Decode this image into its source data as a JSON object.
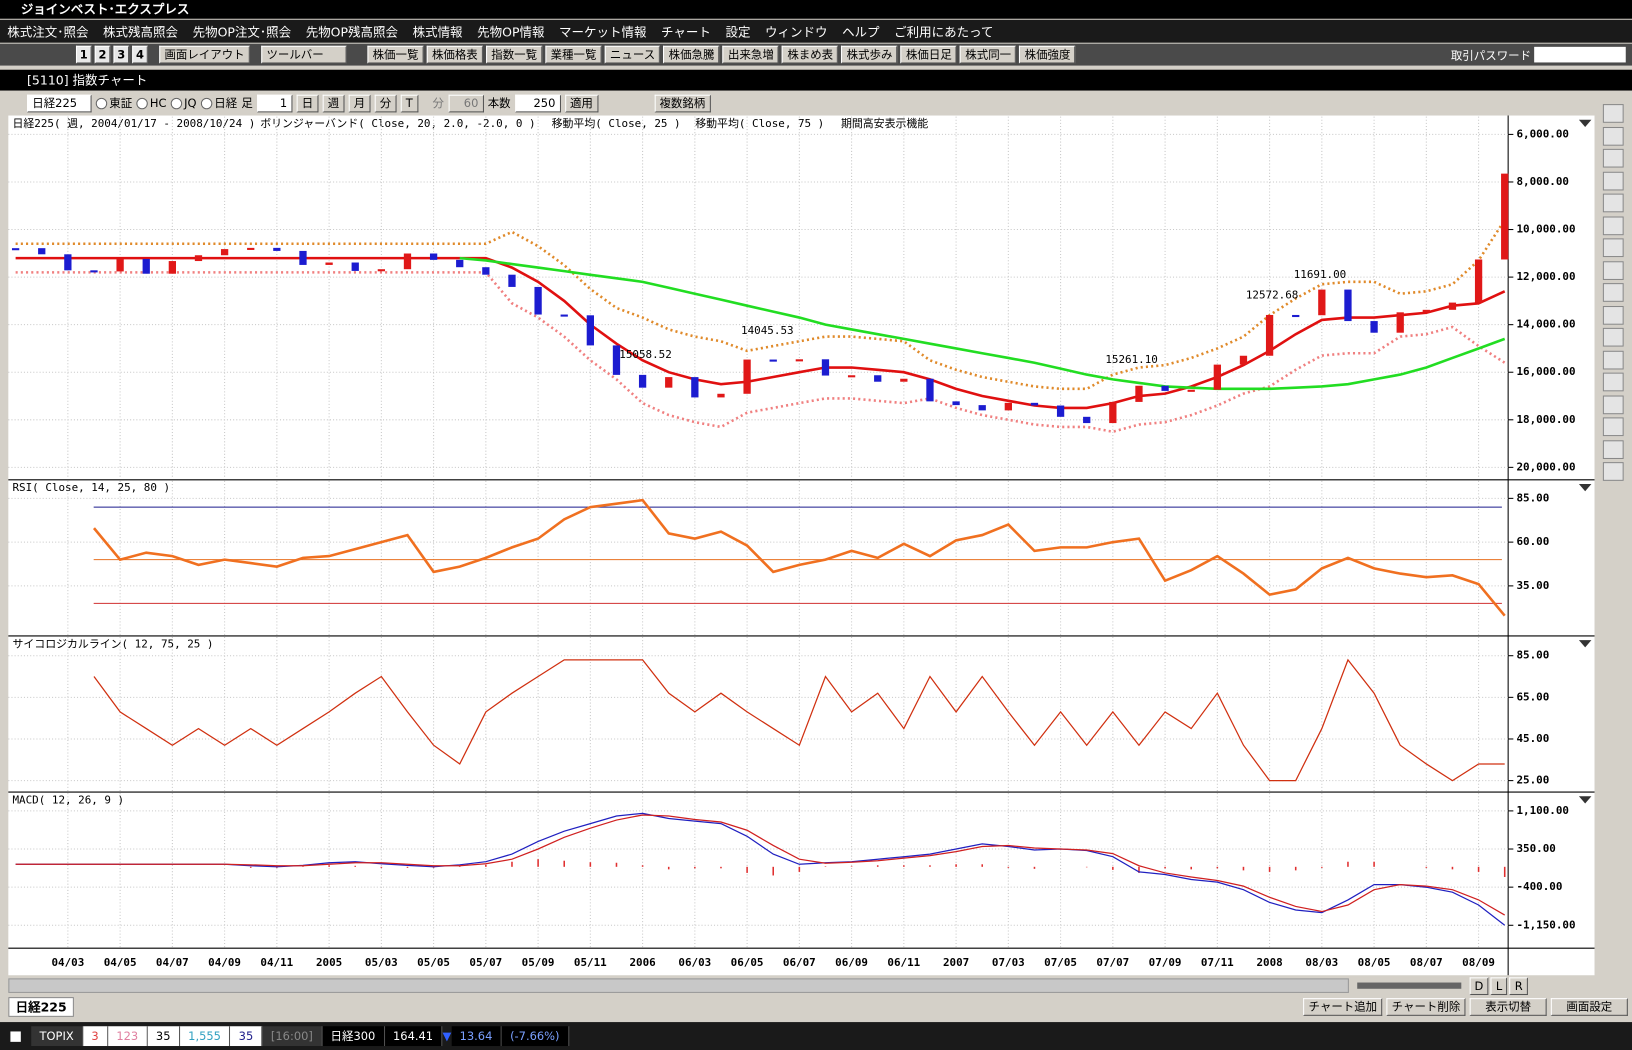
{
  "window_title": "ジョインベスト･エクスプレス",
  "menu": [
    "株式注文･照会",
    "株式残高照会",
    "先物OP注文･照会",
    "先物OP残高照会",
    "株式情報",
    "先物OP情報",
    "マーケット情報",
    "チャート",
    "設定",
    "ウィンドウ",
    "ヘルプ",
    "ご利用にあたって"
  ],
  "toolbar": {
    "pages": [
      "1",
      "2",
      "3",
      "4"
    ],
    "dropdowns": [
      "画面レイアウト",
      "ツールバー"
    ],
    "buttons": [
      "株価一覧",
      "株価格表",
      "指数一覧",
      "業種一覧",
      "ニュース",
      "株価急騰",
      "出来急増",
      "株まめ表",
      "株式歩み",
      "株価日足",
      "株式同一",
      "株価強度"
    ],
    "password_label": "取引パスワード"
  },
  "chart_window": {
    "title": "[5110] 指数チャート",
    "controls": {
      "symbol": "日経225",
      "markets": [
        "東証",
        "HC",
        "JQ",
        "日経"
      ],
      "period_label": "足",
      "period": "1",
      "units": [
        "日",
        "週",
        "月",
        "分",
        "T"
      ],
      "minute_label": "分",
      "minutes": "60",
      "count_label": "本数",
      "count": "250",
      "apply": "適用",
      "multi": "複数銘柄"
    },
    "header": [
      "日経225( 週, 2004/01/17 - 2008/10/24 )",
      "ボリンジャーバンド( Close, 20, 2.0, -2.0, 0 )",
      "移動平均( Close, 25 )",
      "移動平均( Close, 75 )",
      "期間高安表示機能"
    ],
    "scroll_buttons": [
      "D",
      "L",
      "R"
    ],
    "tab": "日経225",
    "buttons": [
      "チャート追加",
      "チャート削除",
      "表示切替",
      "画面設定"
    ]
  },
  "status_bar": {
    "items": [
      "TOPIX",
      "3",
      "123",
      "35",
      "1,555",
      "35",
      "[16:00]",
      "日経300",
      "164.41",
      "13.64",
      "(-7.66%)"
    ]
  },
  "chart_data": [
    {
      "type": "candlestick",
      "categories": [
        null,
        null,
        "04/03",
        null,
        "04/05",
        null,
        "04/07",
        null,
        "04/09",
        null,
        "04/11",
        null,
        "2005",
        null,
        "05/03",
        null,
        "05/05",
        null,
        "05/07",
        null,
        "05/09",
        null,
        "05/11",
        null,
        "2006",
        null,
        "06/03",
        null,
        "06/05",
        null,
        "06/07",
        null,
        "06/09",
        null,
        "06/11",
        null,
        "2007",
        null,
        "07/03",
        null,
        "07/05",
        null,
        "07/07",
        null,
        "07/09",
        null,
        "07/11",
        null,
        "2008",
        null,
        "08/03",
        null,
        "08/05",
        null,
        "08/07",
        null,
        "08/09",
        null
      ],
      "values": [
        10783,
        11041,
        11715,
        11761,
        11236,
        11858,
        11325,
        11081,
        10823,
        10771,
        10899,
        11488,
        11387,
        11740,
        11668,
        11008,
        11276,
        11584,
        11899,
        12413,
        13574,
        13606,
        14872,
        16111,
        16649,
        16205,
        17059,
        16906,
        15467,
        15505,
        15456,
        16140,
        16127,
        16399,
        16274,
        17225,
        17383,
        17604,
        17287,
        17400,
        17875,
        18138,
        17248,
        16569,
        16785,
        16737,
        15680,
        15307,
        13592,
        13603,
        12525,
        13849,
        14338,
        13481,
        13376,
        13072,
        11259,
        7649
      ],
      "up_color": "#1c1cd0",
      "down_color": "#e01818",
      "series": [
        {
          "color": "#f08080",
          "dash": true,
          "values": [
            11800,
            11800,
            11800,
            11800,
            11800,
            11800,
            11800,
            11800,
            11800,
            11800,
            11800,
            11800,
            11800,
            11800,
            11800,
            11800,
            11800,
            11800,
            11800,
            13100,
            13700,
            14500,
            15500,
            16300,
            17300,
            17800,
            18100,
            18300,
            17700,
            17500,
            17300,
            17100,
            17100,
            17200,
            17300,
            17100,
            17500,
            17800,
            18000,
            18200,
            18300,
            18300,
            18500,
            18200,
            18100,
            17800,
            17400,
            16900,
            16600,
            15900,
            15300,
            15200,
            15200,
            14500,
            14400,
            14100,
            14900,
            15600
          ]
        },
        {
          "color": "#e08a2a",
          "dash": true,
          "values": [
            10600,
            10600,
            10600,
            10600,
            10600,
            10600,
            10600,
            10600,
            10600,
            10600,
            10600,
            10600,
            10600,
            10600,
            10600,
            10600,
            10600,
            10600,
            10600,
            10100,
            10700,
            11500,
            12500,
            13300,
            13700,
            14200,
            14500,
            14700,
            15100,
            14900,
            14700,
            14500,
            14500,
            14600,
            14700,
            15500,
            15900,
            16200,
            16400,
            16600,
            16700,
            16700,
            16100,
            15800,
            15700,
            15400,
            15000,
            14500,
            13600,
            12900,
            12300,
            12200,
            12200,
            12700,
            12600,
            12300,
            11300,
            9600
          ]
        },
        {
          "color": "#e01010",
          "dash": false,
          "values": [
            11200,
            11200,
            11200,
            11200,
            11200,
            11200,
            11200,
            11200,
            11200,
            11200,
            11200,
            11200,
            11200,
            11200,
            11200,
            11200,
            11200,
            11200,
            11200,
            11600,
            12200,
            13000,
            14000,
            14800,
            15500,
            16000,
            16300,
            16500,
            16400,
            16200,
            16000,
            15800,
            15800,
            15900,
            16000,
            16300,
            16700,
            17000,
            17200,
            17400,
            17500,
            17500,
            17300,
            17000,
            16900,
            16600,
            16200,
            15700,
            15100,
            14400,
            13800,
            13700,
            13700,
            13600,
            13500,
            13200,
            13100,
            12600
          ]
        },
        {
          "color": "#22dd22",
          "dash": false,
          "values": [
            null,
            null,
            null,
            null,
            null,
            null,
            null,
            null,
            null,
            null,
            null,
            null,
            null,
            null,
            null,
            null,
            null,
            11200,
            11300,
            11450,
            11600,
            11750,
            11900,
            12050,
            12200,
            12450,
            12700,
            12950,
            13200,
            13450,
            13700,
            14000,
            14200,
            14400,
            14600,
            14800,
            15000,
            15200,
            15400,
            15600,
            15850,
            16100,
            16300,
            16450,
            16600,
            16650,
            16700,
            16700,
            16700,
            16650,
            16600,
            16500,
            16300,
            16100,
            15800,
            15400,
            15000,
            14600
          ]
        }
      ],
      "annotations": [
        "11691.00",
        "12572.68",
        "14045.53",
        "15261.10",
        "15058.52"
      ],
      "ylim": [
        20480,
        5250
      ],
      "yticks": [
        {
          "value": 6000,
          "label": "6,000.00"
        },
        {
          "value": 8000,
          "label": "8,000.00"
        },
        {
          "value": 10000,
          "label": "10,000.00"
        },
        {
          "value": 12000,
          "label": "12,000.00"
        },
        {
          "value": 14000,
          "label": "14,000.00"
        },
        {
          "value": 16000,
          "label": "16,000.00"
        },
        {
          "value": 18000,
          "label": "18,000.00"
        },
        {
          "value": 20000,
          "label": "20,000.00"
        }
      ],
      "grid": true
    },
    {
      "type": "line",
      "title": "RSI( Close, 14, 25, 80 )",
      "series": [
        {
          "color": "#f07020",
          "values": [
            null,
            null,
            null,
            68,
            50,
            54,
            52,
            47,
            50,
            48,
            46,
            51,
            52,
            56,
            60,
            64,
            43,
            46,
            51,
            57,
            62,
            73,
            80,
            82,
            84,
            65,
            62,
            66,
            58,
            43,
            47,
            50,
            55,
            51,
            59,
            52,
            61,
            64,
            70,
            55,
            57,
            57,
            60,
            62,
            38,
            44,
            52,
            42,
            30,
            33,
            45,
            51,
            45,
            42,
            40,
            41,
            36,
            18
          ]
        }
      ],
      "reference_lines": [
        {
          "value": 80,
          "color": "#1a1a8c"
        },
        {
          "value": 50,
          "color": "#e87020"
        },
        {
          "value": 25,
          "color": "#d03030"
        }
      ],
      "ylim": [
        7,
        95
      ],
      "yticks": [
        {
          "value": 85,
          "label": "85.00"
        },
        {
          "value": 60,
          "label": "60.00"
        },
        {
          "value": 35,
          "label": "35.00"
        }
      ],
      "grid": true
    },
    {
      "type": "line",
      "title": "サイコロジカルライン( 12, 75, 25 )",
      "series": [
        {
          "color": "#d03010",
          "values": [
            null,
            null,
            null,
            75,
            58,
            50,
            42,
            50,
            42,
            50,
            42,
            50,
            58,
            67,
            75,
            58,
            42,
            33,
            58,
            67,
            75,
            83,
            83,
            83,
            83,
            67,
            58,
            67,
            58,
            50,
            42,
            75,
            58,
            67,
            50,
            75,
            58,
            75,
            58,
            42,
            58,
            42,
            58,
            42,
            58,
            50,
            67,
            42,
            25,
            25,
            50,
            83,
            67,
            42,
            33,
            25,
            33,
            33
          ]
        }
      ],
      "ylim": [
        20,
        94
      ],
      "yticks": [
        {
          "value": 85,
          "label": "85.00"
        },
        {
          "value": 65,
          "label": "65.00"
        },
        {
          "value": 45,
          "label": "45.00"
        },
        {
          "value": 25,
          "label": "25.00"
        }
      ],
      "grid": true
    },
    {
      "type": "line",
      "title": "MACD( 12, 26, 9 )",
      "series": [
        {
          "color": "#2020c0",
          "values": [
            50,
            50,
            50,
            50,
            50,
            50,
            50,
            50,
            50,
            20,
            0,
            30,
            80,
            100,
            60,
            30,
            0,
            40,
            100,
            250,
            500,
            700,
            850,
            1000,
            1050,
            950,
            900,
            850,
            600,
            250,
            50,
            80,
            100,
            150,
            200,
            250,
            350,
            450,
            400,
            330,
            350,
            320,
            200,
            -100,
            -150,
            -250,
            -300,
            -450,
            -700,
            -850,
            -900,
            -650,
            -350,
            -350,
            -400,
            -500,
            -750,
            -1150
          ]
        },
        {
          "color": "#d02020",
          "values": [
            50,
            50,
            50,
            50,
            50,
            50,
            50,
            50,
            50,
            40,
            20,
            20,
            50,
            80,
            80,
            50,
            20,
            20,
            60,
            150,
            350,
            580,
            760,
            920,
            1020,
            1000,
            930,
            880,
            720,
            420,
            150,
            70,
            90,
            120,
            170,
            220,
            300,
            400,
            420,
            370,
            350,
            330,
            260,
            20,
            -120,
            -200,
            -270,
            -380,
            -600,
            -780,
            -880,
            -750,
            -450,
            -350,
            -380,
            -450,
            -650,
            -950
          ]
        }
      ],
      "histogram": {
        "color": "#e03030",
        "values": [
          0,
          0,
          0,
          0,
          0,
          0,
          0,
          0,
          0,
          -20,
          -20,
          10,
          30,
          20,
          -20,
          -20,
          -20,
          20,
          40,
          100,
          150,
          120,
          90,
          80,
          30,
          -50,
          -30,
          -30,
          -120,
          -170,
          -100,
          10,
          10,
          30,
          30,
          30,
          50,
          50,
          -20,
          -40,
          0,
          -10,
          -60,
          -120,
          -30,
          -50,
          -30,
          -70,
          -100,
          -70,
          -20,
          100,
          100,
          0,
          -20,
          -50,
          -100,
          -200
        ]
      },
      "ylim": [
        -1580,
        1450
      ],
      "yticks": [
        {
          "value": 1100,
          "label": "1,100.00"
        },
        {
          "value": 350,
          "label": "350.00"
        },
        {
          "value": -400,
          "label": "-400.00"
        },
        {
          "value": -1150,
          "label": "-1,150.00"
        }
      ],
      "grid": true
    }
  ]
}
